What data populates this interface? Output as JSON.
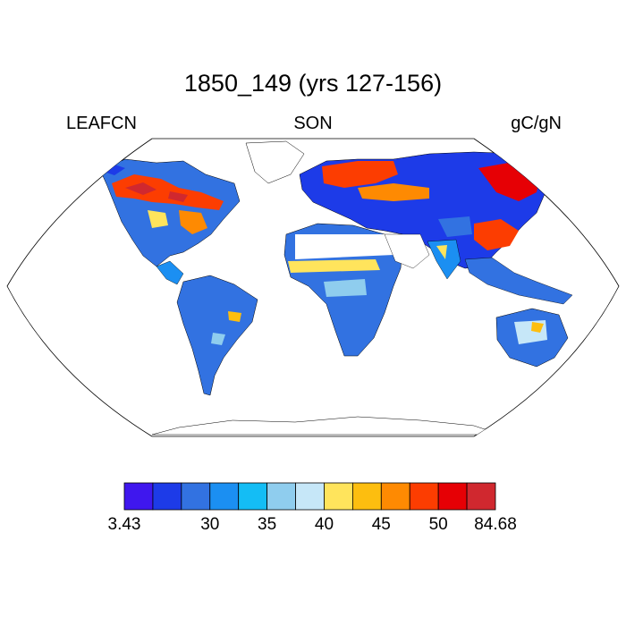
{
  "title": "1850_149 (yrs 127-156)",
  "left_label": "LEAFCN",
  "center_label": "SON",
  "right_label": "gC/gN",
  "colorbar": {
    "colors": [
      "#3f17ee",
      "#1d3be8",
      "#3272e1",
      "#1b8ff2",
      "#14bdf5",
      "#8fcdee",
      "#c6e7f8",
      "#ffe45c",
      "#fdbe0f",
      "#fe8a02",
      "#fc3d01",
      "#e60005",
      "#d0282f"
    ],
    "tick_labels": [
      "3.43",
      "30",
      "35",
      "40",
      "45",
      "50",
      "84.68"
    ],
    "tick_boundaries": [
      0,
      3,
      5,
      7,
      9,
      11,
      13
    ]
  }
}
